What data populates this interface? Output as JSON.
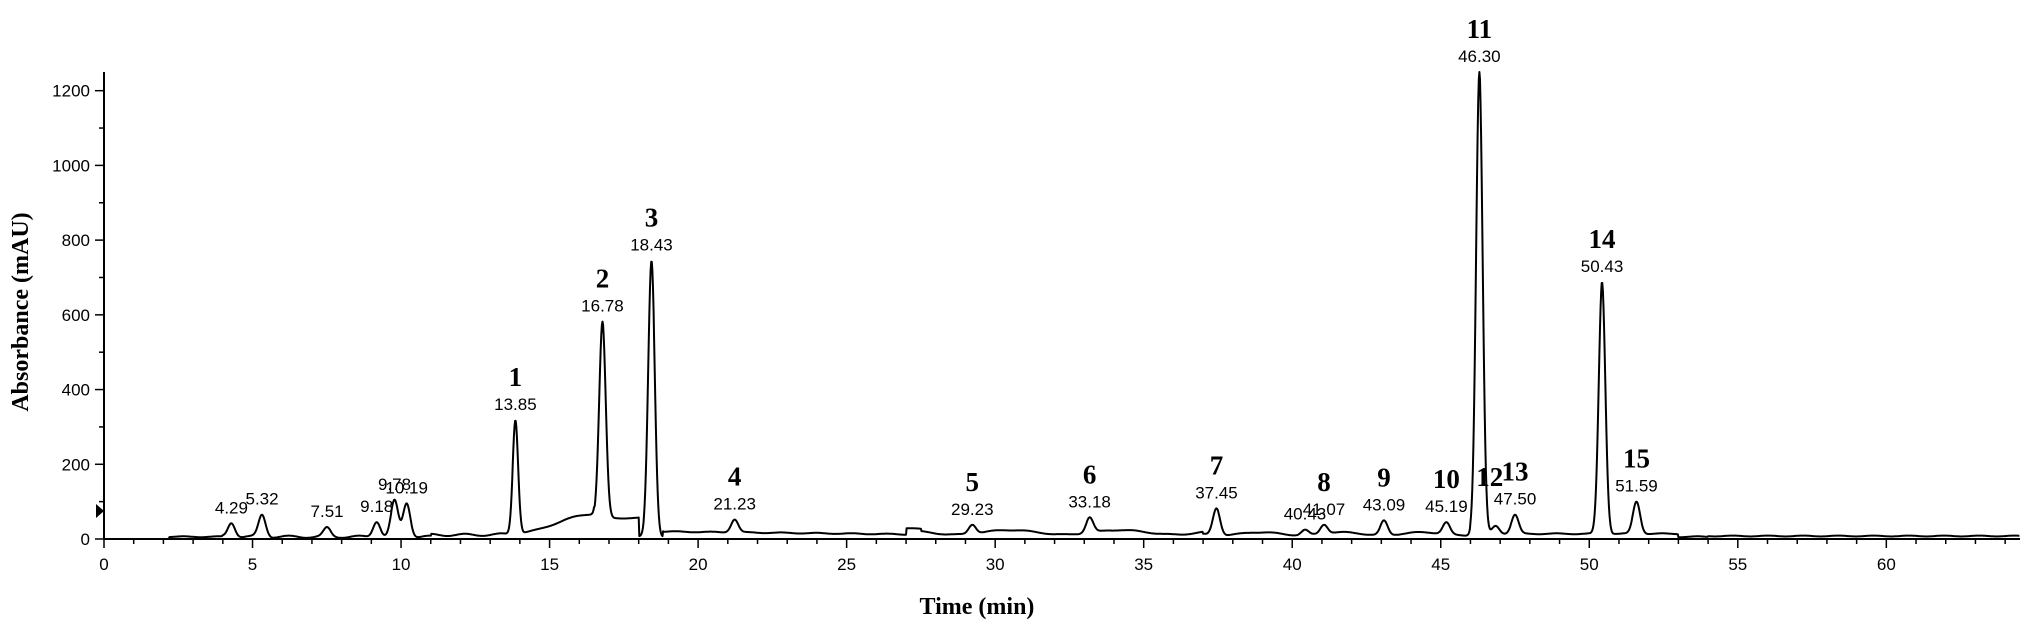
{
  "chart_data": {
    "type": "line",
    "title": "",
    "xlabel": "Time (min)",
    "ylabel": "Absorbance (mAU)",
    "xlim": [
      0,
      64.5
    ],
    "ylim": [
      0,
      1250
    ],
    "x_ticks": [
      0,
      5,
      10,
      15,
      20,
      25,
      30,
      35,
      40,
      45,
      50,
      55,
      60
    ],
    "y_ticks": [
      0,
      200,
      400,
      600,
      800,
      1000,
      1200
    ],
    "grid": false,
    "legend": "none",
    "peaks": [
      {
        "label": "",
        "rt": "4.29",
        "x": 4.29,
        "y": 42
      },
      {
        "label": "",
        "rt": "5.32",
        "x": 5.32,
        "y": 65
      },
      {
        "label": "",
        "rt": "7.51",
        "x": 7.51,
        "y": 32
      },
      {
        "label": "",
        "rt": "9.18",
        "x": 9.18,
        "y": 45
      },
      {
        "label": "",
        "rt": "9.78",
        "x": 9.78,
        "y": 105
      },
      {
        "label": "",
        "rt": "10.19",
        "x": 10.19,
        "y": 95
      },
      {
        "label": "1",
        "rt": "13.85",
        "x": 13.85,
        "y": 318
      },
      {
        "label": "2",
        "rt": "16.78",
        "x": 16.78,
        "y": 582
      },
      {
        "label": "3",
        "rt": "18.43",
        "x": 18.43,
        "y": 745
      },
      {
        "label": "4",
        "rt": "21.23",
        "x": 21.23,
        "y": 52
      },
      {
        "label": "5",
        "rt": "29.23",
        "x": 29.23,
        "y": 38
      },
      {
        "label": "6",
        "rt": "33.18",
        "x": 33.18,
        "y": 58
      },
      {
        "label": "7",
        "rt": "37.45",
        "x": 37.45,
        "y": 82
      },
      {
        "label": "",
        "rt": "40.43",
        "x": 40.43,
        "y": 25
      },
      {
        "label": "8",
        "rt": "41.07",
        "x": 41.07,
        "y": 38
      },
      {
        "label": "9",
        "rt": "43.09",
        "x": 43.09,
        "y": 50
      },
      {
        "label": "10",
        "rt": "45.19",
        "x": 45.19,
        "y": 45
      },
      {
        "label": "11",
        "rt": "46.30",
        "x": 46.3,
        "y": 1250
      },
      {
        "label": "12",
        "rt": "",
        "x": 46.85,
        "y": 35
      },
      {
        "label": "13",
        "rt": "47.50",
        "x": 47.5,
        "y": 65
      },
      {
        "label": "14",
        "rt": "50.43",
        "x": 50.43,
        "y": 688
      },
      {
        "label": "15",
        "rt": "51.59",
        "x": 51.59,
        "y": 100
      }
    ]
  }
}
